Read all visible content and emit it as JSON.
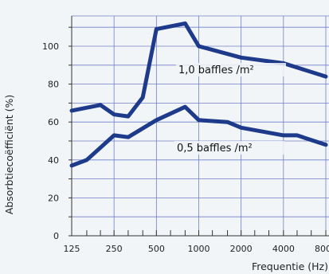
{
  "chart_data": {
    "type": "line",
    "xlabel": "Frequentie (Hz)",
    "ylabel": "Absorbtiecoëfficiënt (%)",
    "x_ticks": [
      "125",
      "250",
      "500",
      "1000",
      "2000",
      "4000",
      "8000"
    ],
    "y_ticks": [
      "0",
      "20",
      "40",
      "60",
      "80",
      "100"
    ],
    "ylim": [
      0,
      116
    ],
    "grid": true,
    "scale": "log-frequency",
    "series": [
      {
        "name": "1,0 baffles /m²",
        "color": "#1e3a8a",
        "points": [
          [
            125,
            66
          ],
          [
            200,
            69
          ],
          [
            250,
            64
          ],
          [
            315,
            63
          ],
          [
            400,
            73
          ],
          [
            500,
            109
          ],
          [
            800,
            112
          ],
          [
            1000,
            100
          ],
          [
            2000,
            94
          ],
          [
            4000,
            91
          ],
          [
            8000,
            84
          ]
        ]
      },
      {
        "name": "0,5 baffles /m²",
        "color": "#1e3a8a",
        "points": [
          [
            125,
            37
          ],
          [
            160,
            40
          ],
          [
            250,
            53
          ],
          [
            315,
            52
          ],
          [
            500,
            61
          ],
          [
            800,
            68
          ],
          [
            1000,
            61
          ],
          [
            1600,
            60
          ],
          [
            2000,
            57
          ],
          [
            4000,
            53
          ],
          [
            5000,
            53
          ],
          [
            8000,
            48
          ]
        ]
      }
    ]
  },
  "colors": {
    "background": "#f2f5f8",
    "grid": "#6f7fc6",
    "line": "#1e3a8a",
    "axis": "#333333"
  }
}
